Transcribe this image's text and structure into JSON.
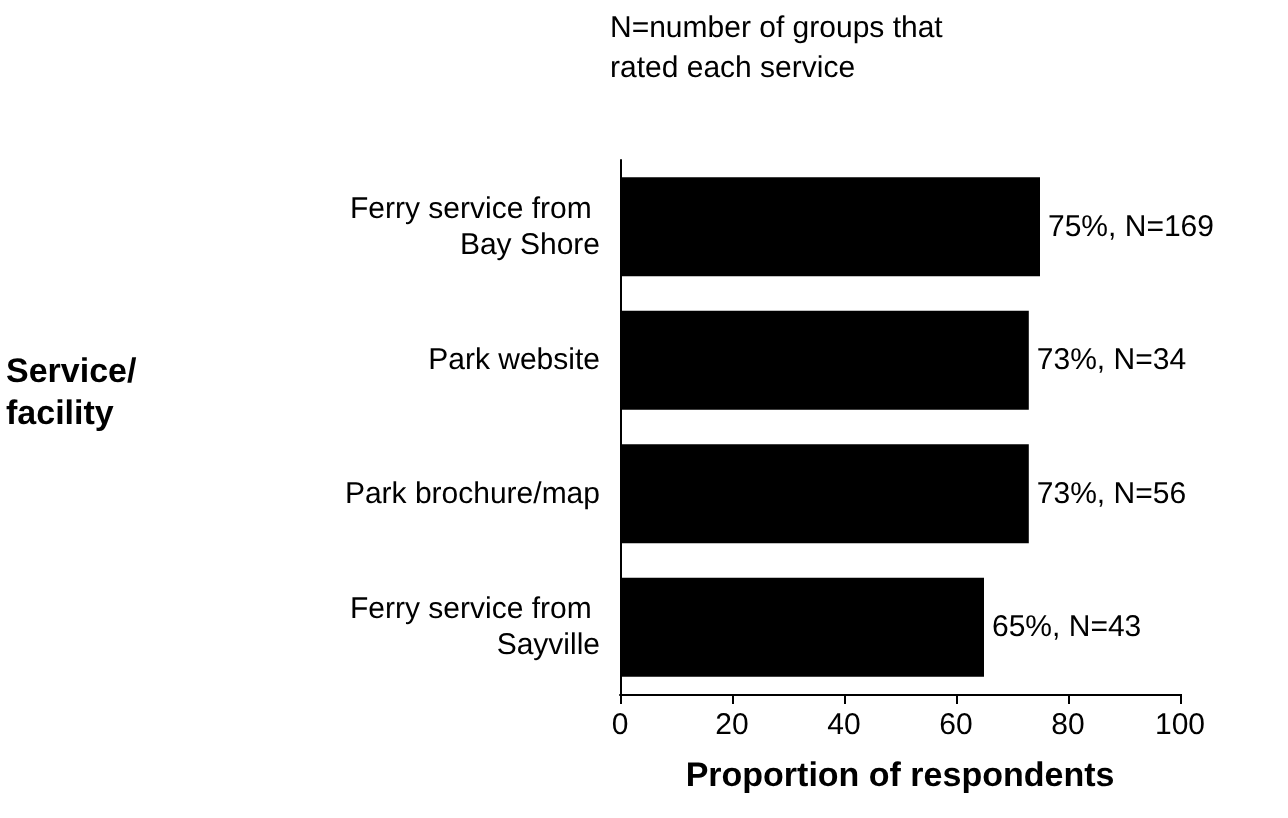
{
  "chart_data": {
    "type": "bar",
    "orientation": "horizontal",
    "categories": [
      "Ferry service from Bay Shore",
      "Park website",
      "Park brochure/map",
      "Ferry service from Sayville"
    ],
    "values": [
      75,
      73,
      73,
      65
    ],
    "color": "#000000",
    "value_labels": [
      "75%, N=169",
      "73%, N=34",
      "73%, N=56",
      "65%, N=43"
    ],
    "xlim": [
      0,
      100
    ],
    "xticks": [
      0,
      20,
      40,
      60,
      80,
      100
    ],
    "xlabel": "Proportion of respondents",
    "annotations": [
      "N=number of groups that rated each service",
      "Service/\nfacility"
    ],
    "grid": false
  }
}
